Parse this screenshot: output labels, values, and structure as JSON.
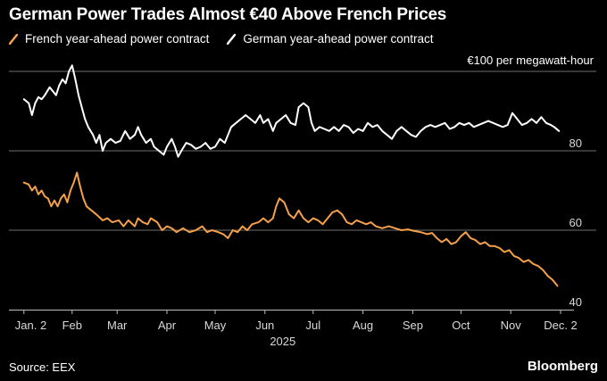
{
  "title": "German Power Trades Almost €40 Above French Prices",
  "source": "Source: EEX",
  "brand": "Bloomberg",
  "colors": {
    "background": "#000000",
    "french": "#f5a04a",
    "german": "#ffffff",
    "grid": "#6e6e6e"
  },
  "chart_data": {
    "type": "line",
    "title": "German Power Trades Almost €40 Above French Prices",
    "unit_label": "€100 per megawatt-hour",
    "year_label": "2025",
    "xlabel": "",
    "ylabel": "€ per megawatt-hour",
    "ylim": [
      40,
      100
    ],
    "yticks": [
      40,
      60,
      80,
      100
    ],
    "ytick_labels": [
      "40",
      "60",
      "80",
      ""
    ],
    "x_range_days": [
      0,
      334
    ],
    "xticks": [
      {
        "label": "Jan. 2",
        "day": 1
      },
      {
        "label": "Feb",
        "day": 31
      },
      {
        "label": "Mar",
        "day": 59
      },
      {
        "label": "Apr",
        "day": 90
      },
      {
        "label": "May",
        "day": 120
      },
      {
        "label": "Jun",
        "day": 151
      },
      {
        "label": "Jul",
        "day": 181
      },
      {
        "label": "Aug",
        "day": 212
      },
      {
        "label": "Sep",
        "day": 243
      },
      {
        "label": "Oct",
        "day": 273
      },
      {
        "label": "Nov",
        "day": 304
      },
      {
        "label": "Dec. 2",
        "day": 335
      }
    ],
    "series": [
      {
        "name": "French year-ahead power contract",
        "color": "#f5a04a",
        "points": [
          [
            1,
            72
          ],
          [
            4,
            71.5
          ],
          [
            6,
            70
          ],
          [
            8,
            71
          ],
          [
            10,
            69
          ],
          [
            12,
            70
          ],
          [
            14,
            68.5
          ],
          [
            16,
            68
          ],
          [
            18,
            66
          ],
          [
            20,
            67.5
          ],
          [
            22,
            66
          ],
          [
            24,
            68
          ],
          [
            26,
            69
          ],
          [
            28,
            67
          ],
          [
            30,
            70
          ],
          [
            32,
            72
          ],
          [
            34,
            74.5
          ],
          [
            36,
            71
          ],
          [
            38,
            68
          ],
          [
            40,
            66
          ],
          [
            43,
            65
          ],
          [
            46,
            64
          ],
          [
            50,
            62.5
          ],
          [
            53,
            63
          ],
          [
            56,
            62
          ],
          [
            60,
            62.5
          ],
          [
            63,
            61
          ],
          [
            66,
            62.5
          ],
          [
            70,
            61
          ],
          [
            72,
            63
          ],
          [
            75,
            62
          ],
          [
            78,
            61.5
          ],
          [
            80,
            63
          ],
          [
            84,
            62
          ],
          [
            87,
            60
          ],
          [
            90,
            61
          ],
          [
            93,
            60.5
          ],
          [
            96,
            59.5
          ],
          [
            100,
            60.5
          ],
          [
            104,
            59.5
          ],
          [
            108,
            60
          ],
          [
            112,
            61
          ],
          [
            115,
            59.5
          ],
          [
            118,
            60
          ],
          [
            122,
            59.5
          ],
          [
            125,
            59
          ],
          [
            128,
            58
          ],
          [
            131,
            60
          ],
          [
            134,
            59.5
          ],
          [
            137,
            61
          ],
          [
            140,
            60
          ],
          [
            143,
            61.5
          ],
          [
            147,
            62
          ],
          [
            150,
            63
          ],
          [
            153,
            62
          ],
          [
            156,
            63
          ],
          [
            158,
            66
          ],
          [
            160,
            68
          ],
          [
            163,
            67
          ],
          [
            166,
            64
          ],
          [
            169,
            63
          ],
          [
            172,
            65
          ],
          [
            175,
            63
          ],
          [
            178,
            62
          ],
          [
            181,
            63
          ],
          [
            184,
            62.5
          ],
          [
            187,
            61.5
          ],
          [
            190,
            63
          ],
          [
            193,
            64.5
          ],
          [
            196,
            65
          ],
          [
            199,
            64
          ],
          [
            202,
            62
          ],
          [
            205,
            61.5
          ],
          [
            208,
            62.5
          ],
          [
            211,
            62
          ],
          [
            214,
            61.5
          ],
          [
            217,
            62
          ],
          [
            220,
            61
          ],
          [
            224,
            60.5
          ],
          [
            228,
            61
          ],
          [
            232,
            60.5
          ],
          [
            236,
            60
          ],
          [
            240,
            60.2
          ],
          [
            244,
            59.8
          ],
          [
            248,
            59.5
          ],
          [
            252,
            59
          ],
          [
            255,
            59.3
          ],
          [
            258,
            58
          ],
          [
            261,
            57
          ],
          [
            264,
            57.8
          ],
          [
            267,
            56.5
          ],
          [
            270,
            57
          ],
          [
            273,
            58.5
          ],
          [
            276,
            59.5
          ],
          [
            279,
            58
          ],
          [
            282,
            57.5
          ],
          [
            285,
            56.5
          ],
          [
            288,
            57
          ],
          [
            291,
            56
          ],
          [
            294,
            56
          ],
          [
            297,
            55.5
          ],
          [
            300,
            54.5
          ],
          [
            303,
            55
          ],
          [
            306,
            53.5
          ],
          [
            309,
            53
          ],
          [
            312,
            52
          ],
          [
            315,
            52.5
          ],
          [
            318,
            51.5
          ],
          [
            321,
            51
          ],
          [
            324,
            50
          ],
          [
            327,
            48.5
          ],
          [
            330,
            47.5
          ],
          [
            333,
            46
          ]
        ]
      },
      {
        "name": "German year-ahead power contract",
        "color": "#ffffff",
        "points": [
          [
            1,
            93
          ],
          [
            4,
            92
          ],
          [
            6,
            89
          ],
          [
            8,
            92
          ],
          [
            10,
            93.5
          ],
          [
            12,
            93
          ],
          [
            14,
            94
          ],
          [
            17,
            96
          ],
          [
            19,
            95
          ],
          [
            21,
            94
          ],
          [
            23,
            96.5
          ],
          [
            25,
            98
          ],
          [
            27,
            97
          ],
          [
            29,
            100
          ],
          [
            31,
            101.5
          ],
          [
            33,
            98
          ],
          [
            35,
            94
          ],
          [
            37,
            91
          ],
          [
            39,
            88
          ],
          [
            41,
            86
          ],
          [
            44,
            84
          ],
          [
            46,
            82
          ],
          [
            48,
            84
          ],
          [
            50,
            80
          ],
          [
            52,
            82
          ],
          [
            55,
            83
          ],
          [
            58,
            82
          ],
          [
            61,
            82.5
          ],
          [
            64,
            85
          ],
          [
            67,
            83
          ],
          [
            70,
            84
          ],
          [
            72,
            86
          ],
          [
            74,
            84
          ],
          [
            77,
            82
          ],
          [
            80,
            83
          ],
          [
            82,
            81
          ],
          [
            85,
            80
          ],
          [
            88,
            79
          ],
          [
            90,
            81
          ],
          [
            93,
            83
          ],
          [
            95,
            81
          ],
          [
            97,
            78.5
          ],
          [
            99,
            80
          ],
          [
            102,
            82
          ],
          [
            105,
            81.5
          ],
          [
            108,
            80.5
          ],
          [
            111,
            81
          ],
          [
            114,
            82
          ],
          [
            117,
            80.5
          ],
          [
            120,
            81
          ],
          [
            123,
            83
          ],
          [
            126,
            82
          ],
          [
            128,
            84
          ],
          [
            130,
            86
          ],
          [
            133,
            87
          ],
          [
            136,
            88
          ],
          [
            139,
            89
          ],
          [
            142,
            88
          ],
          [
            145,
            87
          ],
          [
            148,
            89
          ],
          [
            150,
            87
          ],
          [
            153,
            88
          ],
          [
            156,
            85
          ],
          [
            158,
            87
          ],
          [
            161,
            88
          ],
          [
            164,
            89
          ],
          [
            167,
            87
          ],
          [
            170,
            86.5
          ],
          [
            172,
            91
          ],
          [
            175,
            92
          ],
          [
            178,
            91
          ],
          [
            180,
            87
          ],
          [
            182,
            85
          ],
          [
            185,
            86
          ],
          [
            188,
            85.5
          ],
          [
            191,
            85
          ],
          [
            194,
            86
          ],
          [
            197,
            85
          ],
          [
            200,
            86.5
          ],
          [
            203,
            86
          ],
          [
            206,
            84.5
          ],
          [
            209,
            85.5
          ],
          [
            212,
            85
          ],
          [
            215,
            87
          ],
          [
            218,
            86
          ],
          [
            221,
            86.5
          ],
          [
            224,
            85
          ],
          [
            227,
            84
          ],
          [
            230,
            83
          ],
          [
            233,
            85
          ],
          [
            236,
            86
          ],
          [
            239,
            85
          ],
          [
            242,
            84
          ],
          [
            245,
            83.5
          ],
          [
            248,
            85
          ],
          [
            251,
            86
          ],
          [
            254,
            86.5
          ],
          [
            257,
            86
          ],
          [
            260,
            86.5
          ],
          [
            263,
            87
          ],
          [
            266,
            85.5
          ],
          [
            269,
            86
          ],
          [
            272,
            87
          ],
          [
            275,
            86.5
          ],
          [
            278,
            87
          ],
          [
            281,
            86
          ],
          [
            284,
            86.5
          ],
          [
            287,
            87
          ],
          [
            290,
            87.5
          ],
          [
            293,
            87
          ],
          [
            296,
            86.5
          ],
          [
            299,
            86
          ],
          [
            302,
            86.5
          ],
          [
            305,
            89.5
          ],
          [
            308,
            88
          ],
          [
            311,
            86.5
          ],
          [
            314,
            87
          ],
          [
            317,
            88
          ],
          [
            320,
            87
          ],
          [
            323,
            88.5
          ],
          [
            326,
            87
          ],
          [
            329,
            86.5
          ],
          [
            331,
            86
          ],
          [
            334,
            85
          ]
        ]
      }
    ]
  }
}
